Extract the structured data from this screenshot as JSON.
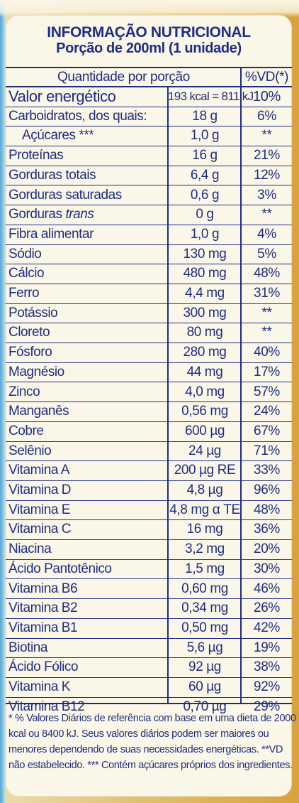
{
  "title": "INFORMAÇÃO NUTRICIONAL",
  "serving": "Porção de 200ml (1 unidade)",
  "table": {
    "header": {
      "quantity": "Quantidade por porção",
      "vd": "%VD(*)"
    },
    "rows": [
      {
        "name": "Valor energético",
        "amount": "193 kcal = 811 kJ",
        "vd": "10%"
      },
      {
        "name": "Carboidratos, dos quais:",
        "amount": "18 g",
        "vd": "6%"
      },
      {
        "name": "Açúcares ***",
        "amount": "1,0 g",
        "vd": "**"
      },
      {
        "name": "Proteínas",
        "amount": "16 g",
        "vd": "21%"
      },
      {
        "name": "Gorduras totais",
        "amount": "6,4 g",
        "vd": "12%"
      },
      {
        "name": "Gorduras saturadas",
        "amount": "0,6 g",
        "vd": "3%"
      },
      {
        "name": "Gorduras",
        "name_extra": "trans",
        "amount": "0 g",
        "vd": "**"
      },
      {
        "name": "Fibra alimentar",
        "amount": "1,0 g",
        "vd": "4%"
      },
      {
        "name": "Sódio",
        "amount": "130 mg",
        "vd": "5%"
      },
      {
        "name": "Cálcio",
        "amount": "480 mg",
        "vd": "48%"
      },
      {
        "name": "Ferro",
        "amount": "4,4 mg",
        "vd": "31%"
      },
      {
        "name": "Potássio",
        "amount": "300 mg",
        "vd": "**"
      },
      {
        "name": "Cloreto",
        "amount": "80 mg",
        "vd": "**"
      },
      {
        "name": "Fósforo",
        "amount": "280 mg",
        "vd": "40%"
      },
      {
        "name": "Magnésio",
        "amount": "44 mg",
        "vd": "17%"
      },
      {
        "name": "Zinco",
        "amount": "4,0 mg",
        "vd": "57%"
      },
      {
        "name": "Manganês",
        "amount": "0,56 mg",
        "vd": "24%"
      },
      {
        "name": "Cobre",
        "amount": "600 µg",
        "vd": "67%"
      },
      {
        "name": "Selênio",
        "amount": "24 µg",
        "vd": "71%"
      },
      {
        "name": "Vitamina A",
        "amount": "200 µg RE",
        "vd": "33%"
      },
      {
        "name": "Vitamina D",
        "amount": "4,8 µg",
        "vd": "96%"
      },
      {
        "name": "Vitamina E",
        "amount": "4,8 mg α TE",
        "vd": "48%"
      },
      {
        "name": "Vitamina C",
        "amount": "16 mg",
        "vd": "36%"
      },
      {
        "name": "Niacina",
        "amount": "3,2 mg",
        "vd": "20%"
      },
      {
        "name": "Ácido Pantotênico",
        "amount": "1,5 mg",
        "vd": "30%"
      },
      {
        "name": "Vitamina B6",
        "amount": "0,60 mg",
        "vd": "46%"
      },
      {
        "name": "Vitamina B2",
        "amount": "0,34 mg",
        "vd": "26%"
      },
      {
        "name": "Vitamina B1",
        "amount": "0,50 mg",
        "vd": "42%"
      },
      {
        "name": "Biotina",
        "amount": "5,6 µg",
        "vd": "19%"
      },
      {
        "name": "Ácido Fólico",
        "amount": "92 µg",
        "vd": "38%"
      },
      {
        "name": "Vitamina K",
        "amount": "60 µg",
        "vd": "92%"
      },
      {
        "name": "Vitamina B12",
        "amount": "0,70 µg",
        "vd": "29%"
      }
    ]
  },
  "footnote": {
    "line1": "* % Valores Diários de referência com base em uma dieta de 2000",
    "line2": "kcal ou 8400 kJ. Seus valores diários podem ser maiores ou",
    "line3": "menores dependendo de suas necessidades energéticas. **VD",
    "line4": "não estabelecido. *** Contém açúcares próprios dos ingredientes."
  }
}
